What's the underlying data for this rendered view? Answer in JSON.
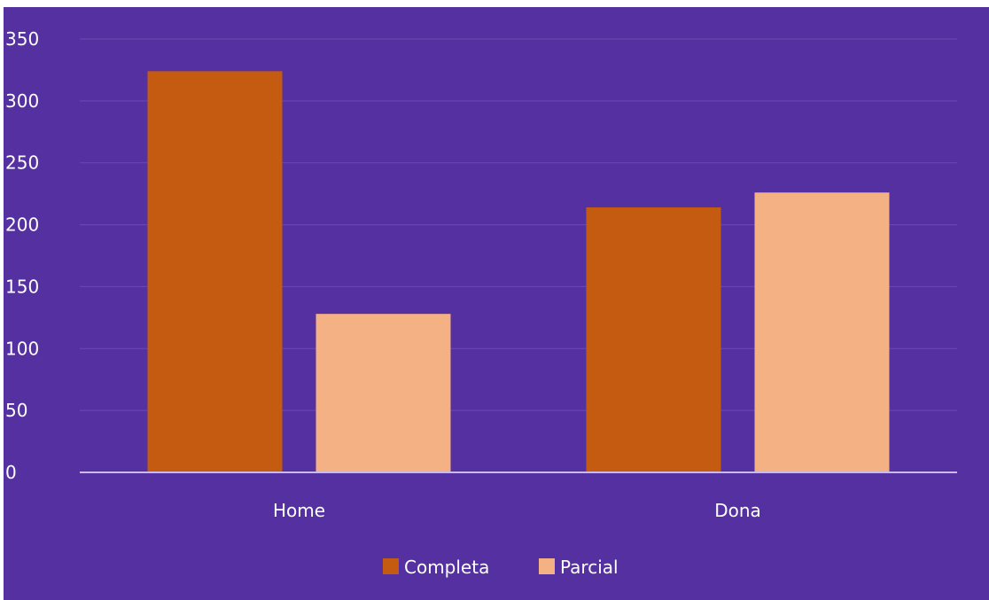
{
  "chart_data": {
    "type": "bar",
    "title": "",
    "xlabel": "",
    "ylabel": "",
    "categories": [
      "Home",
      "Dona"
    ],
    "series": [
      {
        "name": "Completa",
        "values": [
          324,
          214
        ],
        "color": "#C55A11"
      },
      {
        "name": "Parcial",
        "values": [
          128,
          226
        ],
        "color": "#F4B183"
      }
    ],
    "ylim": [
      0,
      350
    ],
    "yticks": [
      "0",
      "50",
      "100",
      "150",
      "200",
      "250",
      "300",
      "350"
    ],
    "grid": true,
    "legend_position": "bottom"
  },
  "colors": {
    "background": "#5530A0",
    "gridline": "#6B4BB0",
    "axis": "#C9BBE6",
    "text": "#FFFFFF"
  }
}
